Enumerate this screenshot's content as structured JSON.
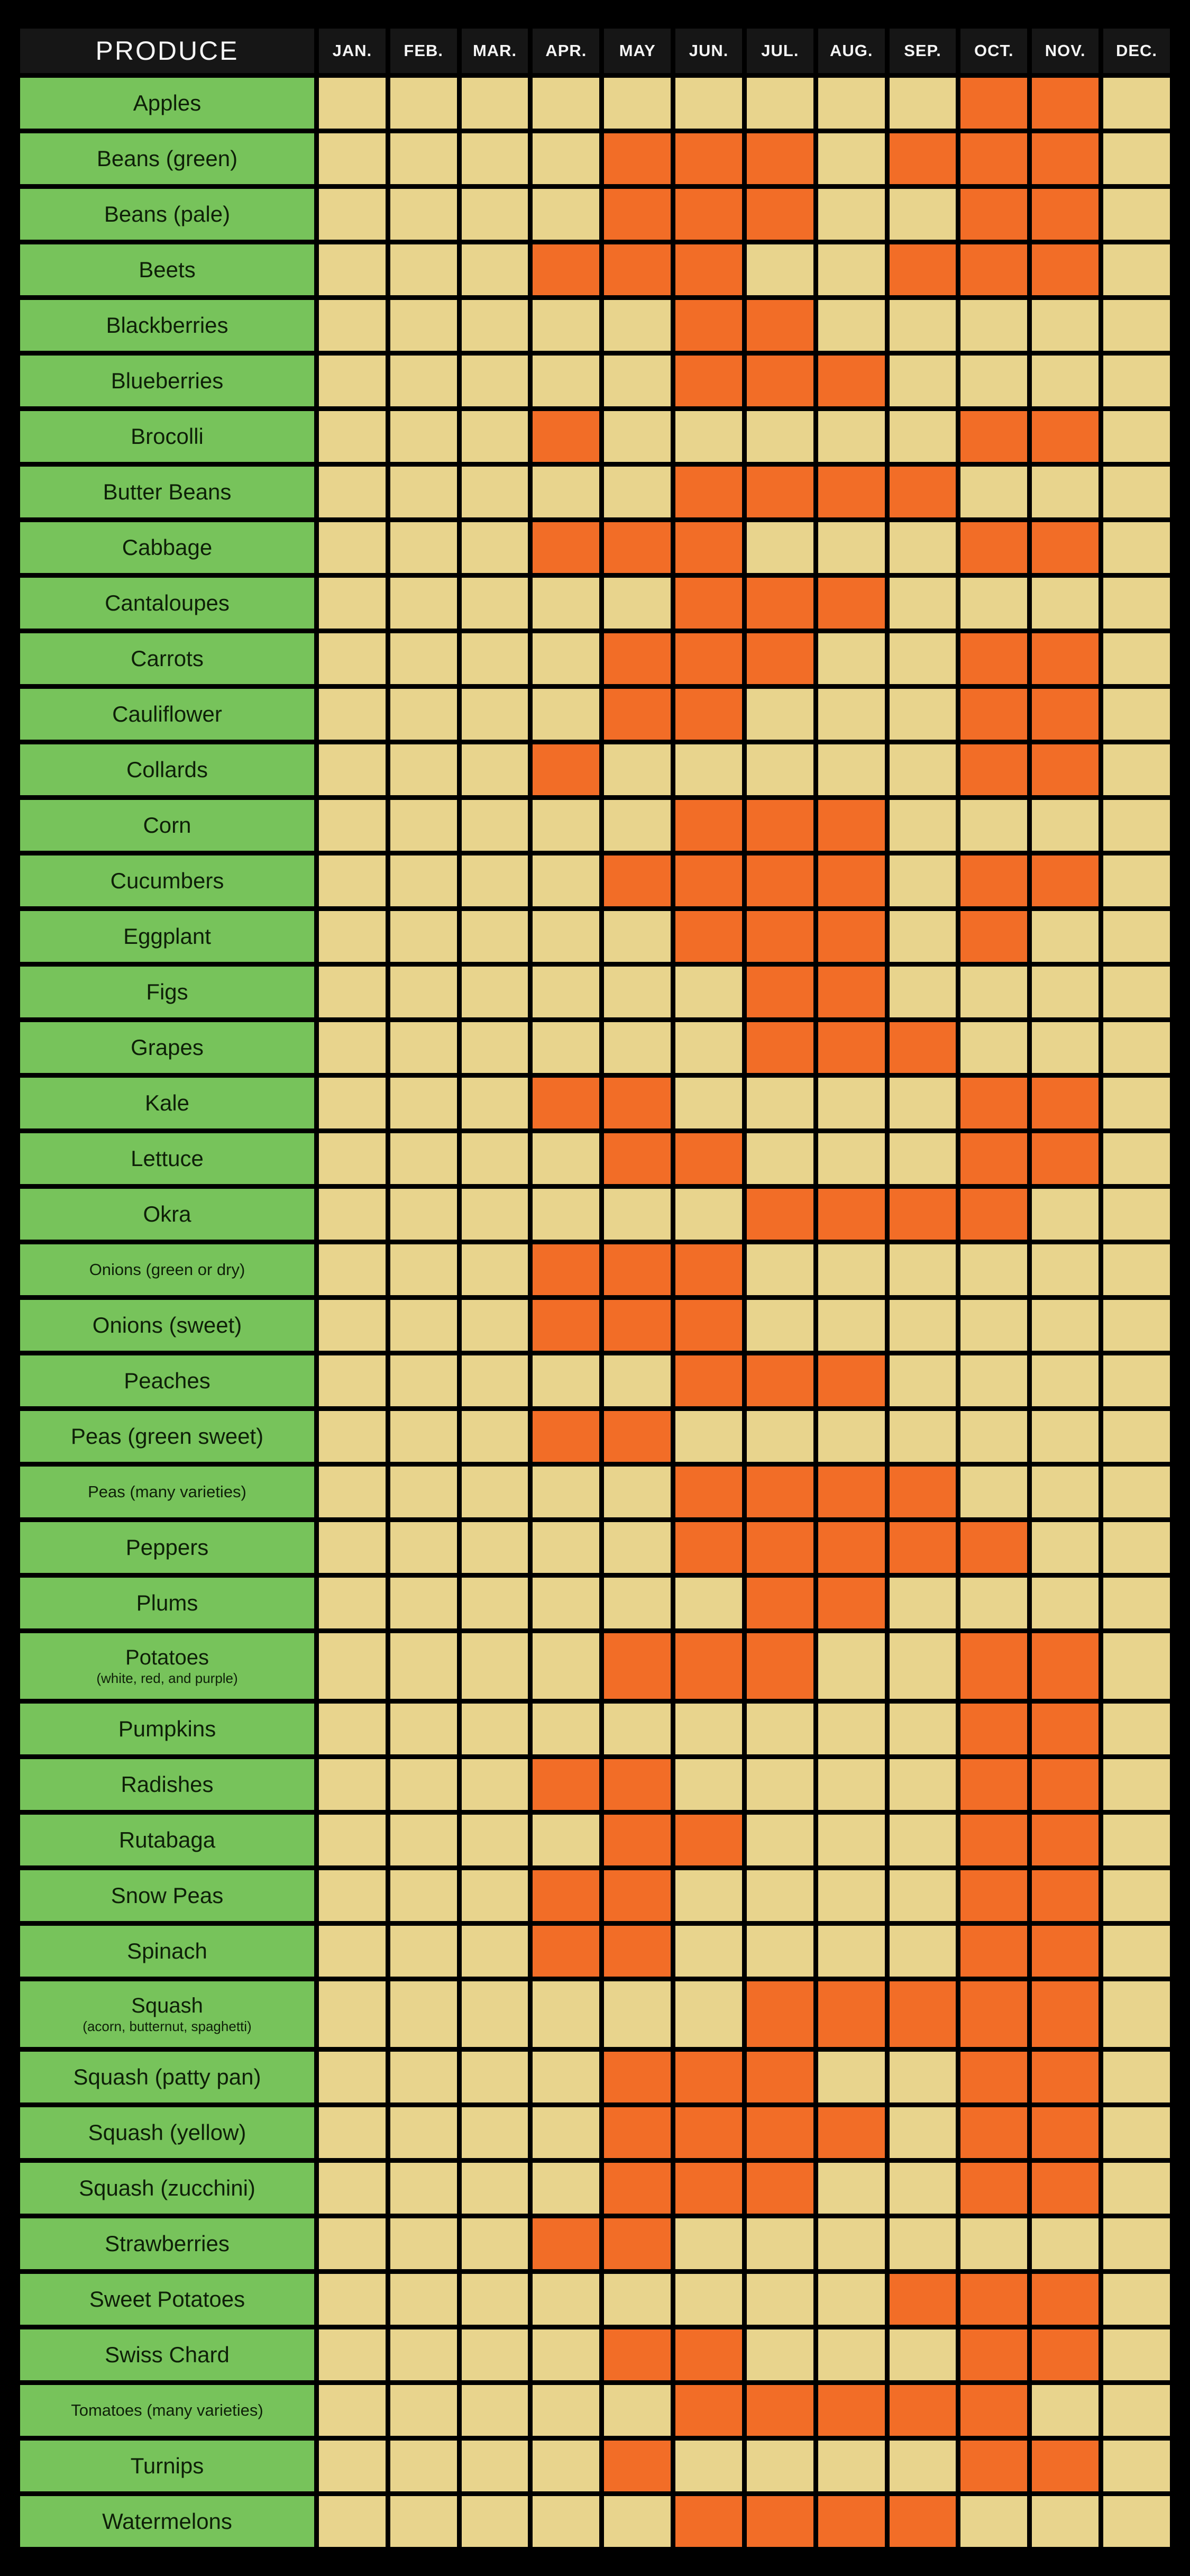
{
  "colors": {
    "background": "#000000",
    "header_bg": "#161616",
    "header_text": "#f5f5f5",
    "produce_bg": "#77c35b",
    "produce_text": "#0e2008",
    "in_season": "#f26d27",
    "out_of_season": "#e8d48d"
  },
  "chart_data": {
    "type": "heatmap",
    "title": "PRODUCE",
    "x_labels": [
      "JAN.",
      "FEB.",
      "MAR.",
      "APR.",
      "MAY",
      "JUN.",
      "JUL.",
      "AUG.",
      "SEP.",
      "OCT.",
      "NOV.",
      "DEC."
    ],
    "value_meaning": "orange cell = month in season / available, tan cell = not in season",
    "rows": [
      {
        "label": "Apples",
        "sublabel": "",
        "in_season_months": [
          10,
          11
        ]
      },
      {
        "label": "Beans (green)",
        "sublabel": "",
        "in_season_months": [
          5,
          6,
          7,
          9,
          10,
          11
        ]
      },
      {
        "label": "Beans (pale)",
        "sublabel": "",
        "in_season_months": [
          5,
          6,
          7,
          10,
          11
        ]
      },
      {
        "label": "Beets",
        "sublabel": "",
        "in_season_months": [
          4,
          5,
          6,
          9,
          10,
          11
        ]
      },
      {
        "label": "Blackberries",
        "sublabel": "",
        "in_season_months": [
          6,
          7
        ]
      },
      {
        "label": "Blueberries",
        "sublabel": "",
        "in_season_months": [
          6,
          7,
          8
        ]
      },
      {
        "label": "Brocolli",
        "sublabel": "",
        "in_season_months": [
          4,
          10,
          11
        ]
      },
      {
        "label": "Butter Beans",
        "sublabel": "",
        "in_season_months": [
          6,
          7,
          8,
          9
        ]
      },
      {
        "label": "Cabbage",
        "sublabel": "",
        "in_season_months": [
          4,
          5,
          6,
          10,
          11
        ]
      },
      {
        "label": "Cantaloupes",
        "sublabel": "",
        "in_season_months": [
          6,
          7,
          8
        ]
      },
      {
        "label": "Carrots",
        "sublabel": "",
        "in_season_months": [
          5,
          6,
          7,
          10,
          11
        ]
      },
      {
        "label": "Cauliflower",
        "sublabel": "",
        "in_season_months": [
          5,
          6,
          10,
          11
        ]
      },
      {
        "label": "Collards",
        "sublabel": "",
        "in_season_months": [
          4,
          10,
          11
        ]
      },
      {
        "label": "Corn",
        "sublabel": "",
        "in_season_months": [
          6,
          7,
          8
        ]
      },
      {
        "label": "Cucumbers",
        "sublabel": "",
        "in_season_months": [
          5,
          6,
          7,
          8,
          10,
          11
        ]
      },
      {
        "label": "Eggplant",
        "sublabel": "",
        "in_season_months": [
          6,
          7,
          8,
          10
        ]
      },
      {
        "label": "Figs",
        "sublabel": "",
        "in_season_months": [
          7,
          8
        ]
      },
      {
        "label": "Grapes",
        "sublabel": "",
        "in_season_months": [
          7,
          8,
          9
        ]
      },
      {
        "label": "Kale",
        "sublabel": "",
        "in_season_months": [
          4,
          5,
          10,
          11
        ]
      },
      {
        "label": "Lettuce",
        "sublabel": "",
        "in_season_months": [
          5,
          6,
          10,
          11
        ]
      },
      {
        "label": "Okra",
        "sublabel": "",
        "in_season_months": [
          7,
          8,
          9,
          10
        ]
      },
      {
        "label": "Onions (green or dry)",
        "sublabel": "",
        "in_season_months": [
          4,
          5,
          6
        ]
      },
      {
        "label": "Onions (sweet)",
        "sublabel": "",
        "in_season_months": [
          4,
          5,
          6
        ]
      },
      {
        "label": "Peaches",
        "sublabel": "",
        "in_season_months": [
          6,
          7,
          8
        ]
      },
      {
        "label": "Peas (green sweet)",
        "sublabel": "",
        "in_season_months": [
          4,
          5
        ]
      },
      {
        "label": "Peas (many varieties)",
        "sublabel": "",
        "in_season_months": [
          6,
          7,
          8,
          9
        ]
      },
      {
        "label": "Peppers",
        "sublabel": "",
        "in_season_months": [
          6,
          7,
          8,
          9,
          10
        ]
      },
      {
        "label": "Plums",
        "sublabel": "",
        "in_season_months": [
          7,
          8
        ]
      },
      {
        "label": "Potatoes",
        "sublabel": "(white, red, and purple)",
        "in_season_months": [
          5,
          6,
          7,
          10,
          11
        ]
      },
      {
        "label": "Pumpkins",
        "sublabel": "",
        "in_season_months": [
          10,
          11
        ]
      },
      {
        "label": "Radishes",
        "sublabel": "",
        "in_season_months": [
          4,
          5,
          10,
          11
        ]
      },
      {
        "label": "Rutabaga",
        "sublabel": "",
        "in_season_months": [
          5,
          6,
          10,
          11
        ]
      },
      {
        "label": "Snow Peas",
        "sublabel": "",
        "in_season_months": [
          4,
          5,
          10,
          11
        ]
      },
      {
        "label": "Spinach",
        "sublabel": "",
        "in_season_months": [
          4,
          5,
          10,
          11
        ]
      },
      {
        "label": "Squash",
        "sublabel": "(acorn, butternut, spaghetti)",
        "in_season_months": [
          7,
          8,
          9,
          10,
          11
        ]
      },
      {
        "label": "Squash (patty pan)",
        "sublabel": "",
        "in_season_months": [
          5,
          6,
          7,
          10,
          11
        ]
      },
      {
        "label": "Squash (yellow)",
        "sublabel": "",
        "in_season_months": [
          5,
          6,
          7,
          8,
          10,
          11
        ]
      },
      {
        "label": "Squash (zucchini)",
        "sublabel": "",
        "in_season_months": [
          5,
          6,
          7,
          10,
          11
        ]
      },
      {
        "label": "Strawberries",
        "sublabel": "",
        "in_season_months": [
          4,
          5
        ]
      },
      {
        "label": "Sweet Potatoes",
        "sublabel": "",
        "in_season_months": [
          9,
          10,
          11
        ]
      },
      {
        "label": "Swiss Chard",
        "sublabel": "",
        "in_season_months": [
          5,
          6,
          10,
          11
        ]
      },
      {
        "label": "Tomatoes (many varieties)",
        "sublabel": "",
        "in_season_months": [
          6,
          7,
          8,
          9,
          10
        ]
      },
      {
        "label": "Turnips",
        "sublabel": "",
        "in_season_months": [
          5,
          10,
          11
        ]
      },
      {
        "label": "Watermelons",
        "sublabel": "",
        "in_season_months": [
          6,
          7,
          8,
          9
        ]
      }
    ]
  }
}
